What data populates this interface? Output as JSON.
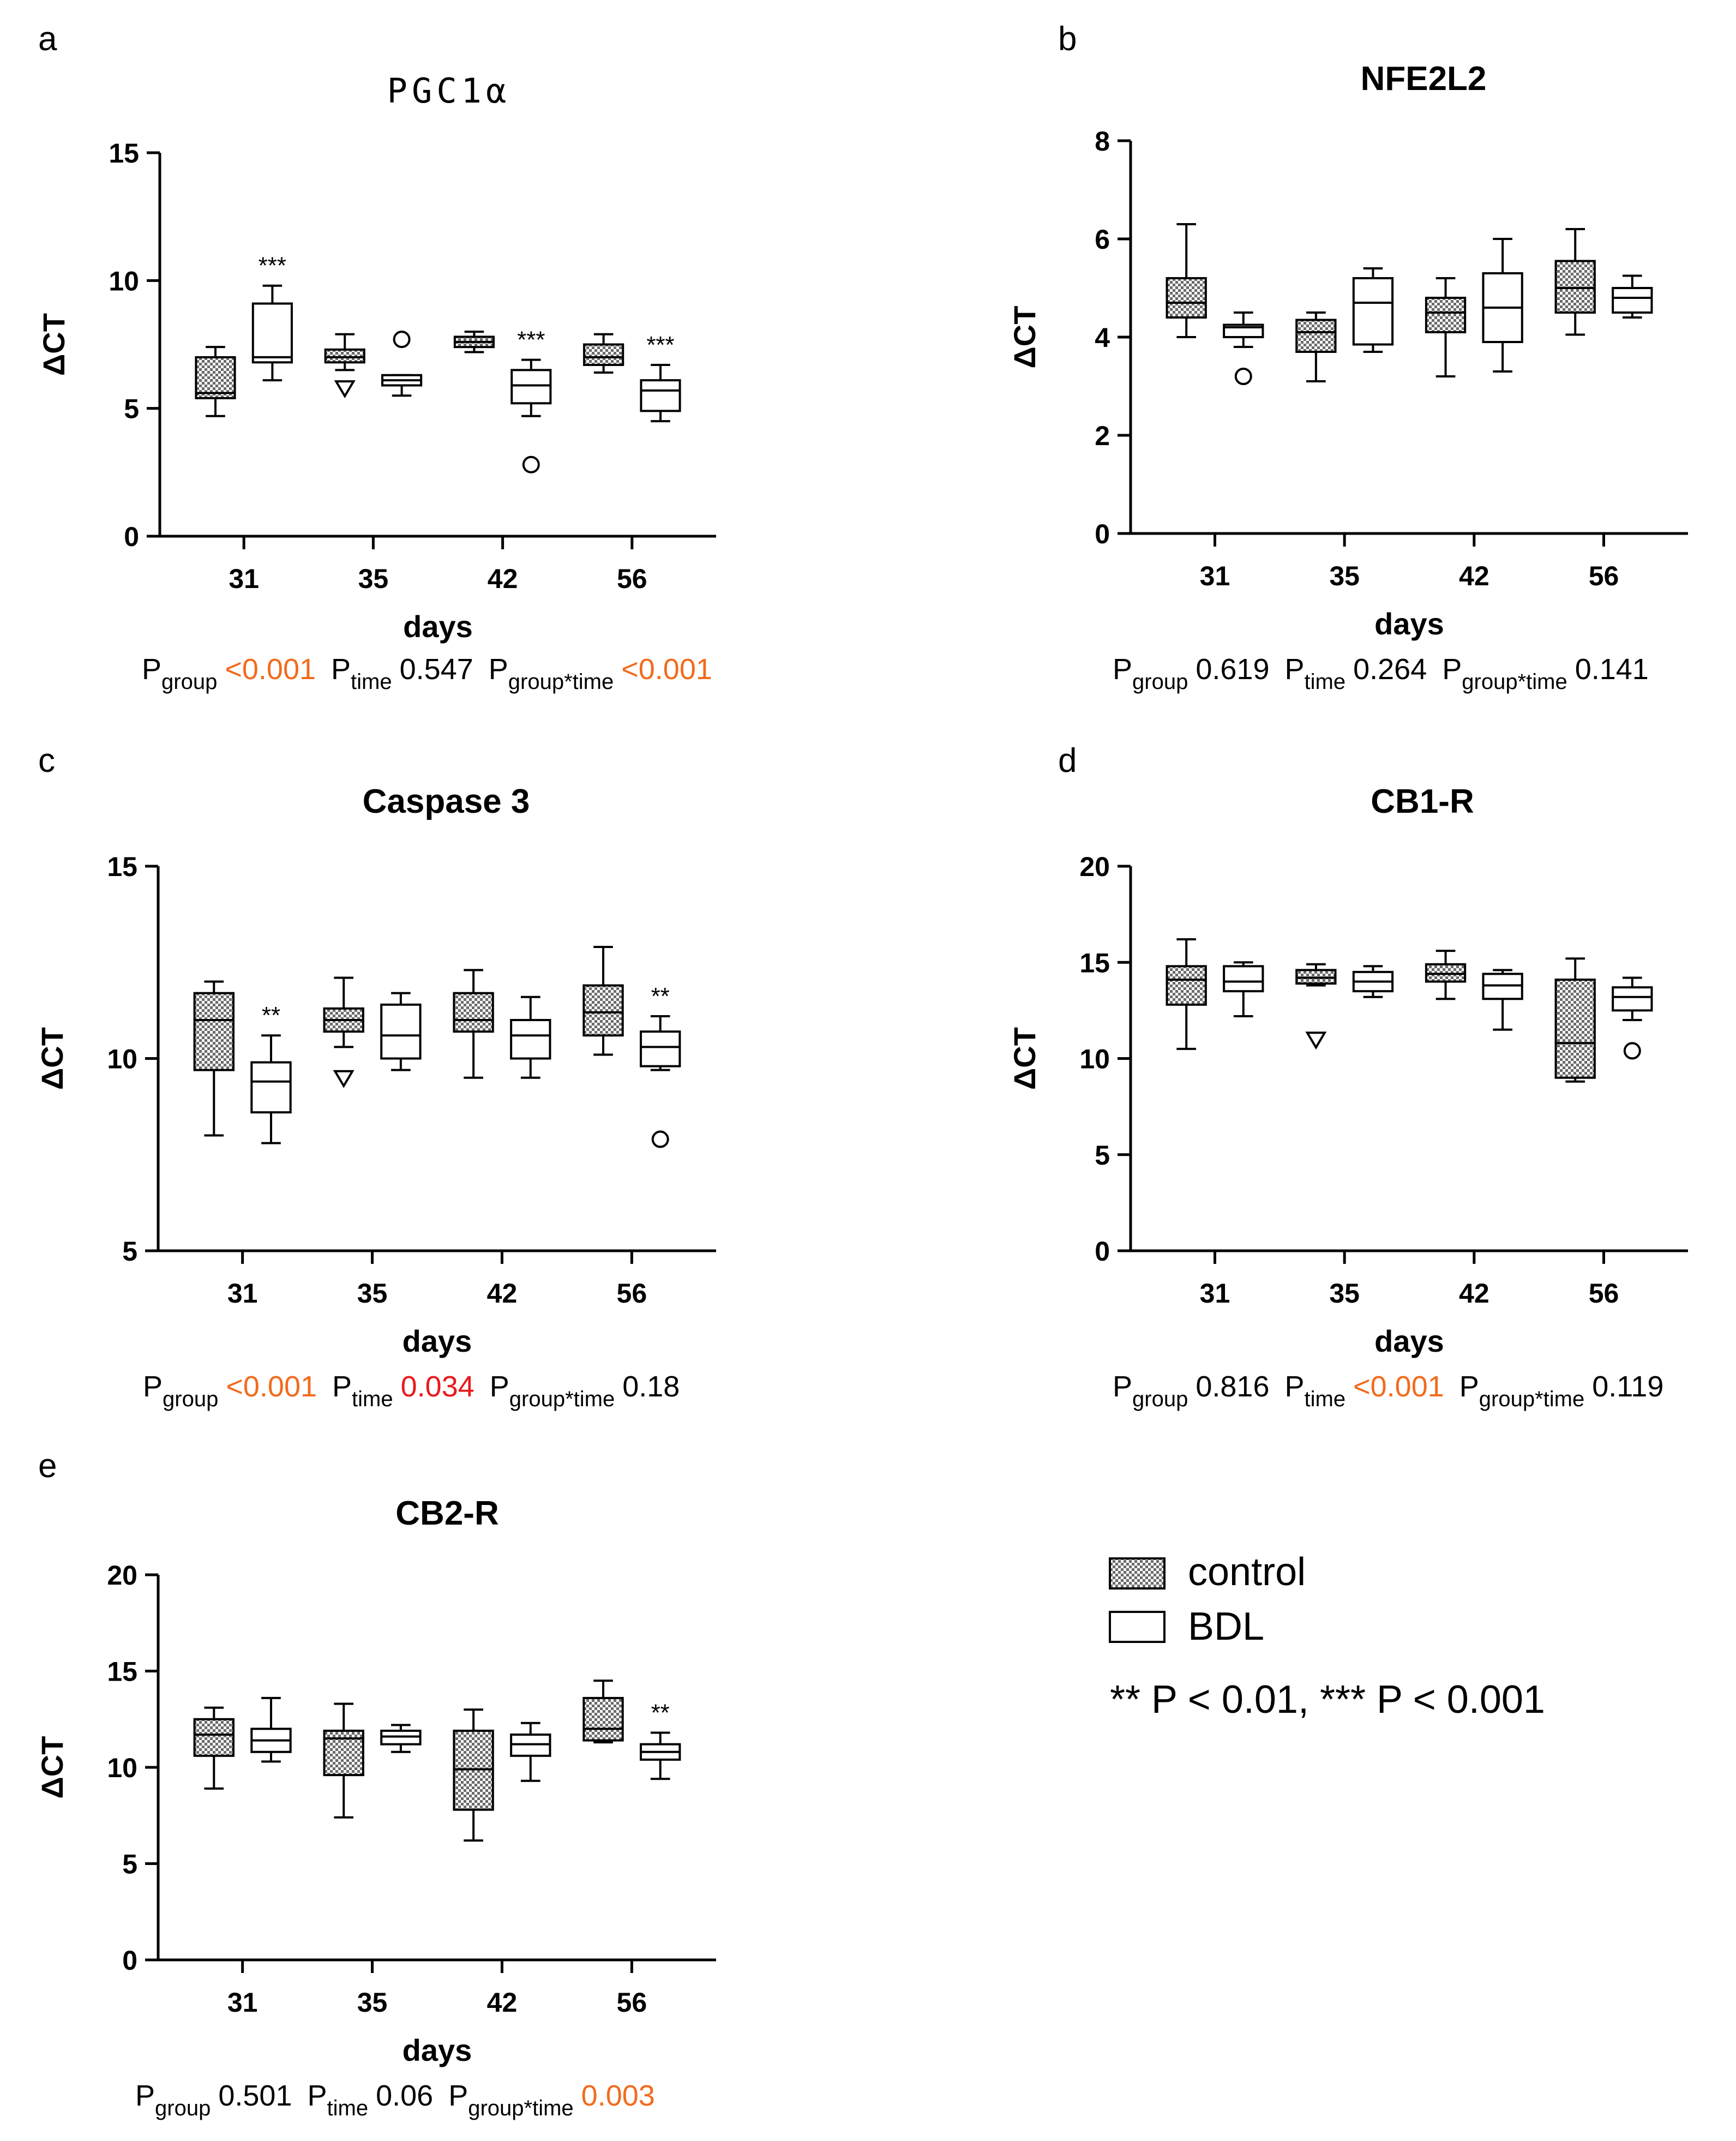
{
  "colors": {
    "control_fill": "#9a9a9a",
    "orange": "#f26b1d",
    "red": "#e8191b"
  },
  "legend": {
    "control": "control",
    "bdl": "BDL",
    "significance": "** P < 0.01, *** P < 0.001"
  },
  "chart_data": [
    {
      "panel": "a",
      "title": "PGC1α",
      "type": "box",
      "ylabel": "ΔCT",
      "xlabel": "days",
      "ylim": [
        0,
        15
      ],
      "yticks": [
        0,
        5,
        10,
        15
      ],
      "categories": [
        "31",
        "35",
        "42",
        "56"
      ],
      "series": [
        {
          "name": "control",
          "boxes": [
            {
              "min": 4.7,
              "q1": 5.4,
              "median": 5.6,
              "q3": 7.0,
              "max": 7.4
            },
            {
              "min": 6.5,
              "q1": 6.8,
              "median": 7.0,
              "q3": 7.3,
              "max": 7.9,
              "outliers": [
                {
                  "value": 5.8,
                  "marker": "triangle"
                }
              ]
            },
            {
              "min": 7.2,
              "q1": 7.4,
              "median": 7.6,
              "q3": 7.8,
              "max": 8.0
            },
            {
              "min": 6.4,
              "q1": 6.7,
              "median": 7.0,
              "q3": 7.5,
              "max": 7.9
            }
          ]
        },
        {
          "name": "BDL",
          "boxes": [
            {
              "min": 6.1,
              "q1": 6.8,
              "median": 7.0,
              "q3": 9.1,
              "max": 9.8,
              "annotation": "***"
            },
            {
              "min": 5.5,
              "q1": 5.9,
              "median": 6.1,
              "q3": 6.3,
              "max": 6.3,
              "outliers": [
                {
                  "value": 7.7,
                  "marker": "circle"
                }
              ]
            },
            {
              "min": 4.7,
              "q1": 5.2,
              "median": 5.9,
              "q3": 6.5,
              "max": 6.9,
              "annotation": "***",
              "outliers": [
                {
                  "value": 2.8,
                  "marker": "circle"
                }
              ]
            },
            {
              "min": 4.5,
              "q1": 4.9,
              "median": 5.7,
              "q3": 6.1,
              "max": 6.7,
              "annotation": "***"
            }
          ]
        }
      ],
      "stats": [
        {
          "label": "P",
          "sub": "group",
          "value": "<0.001",
          "color": "orange"
        },
        {
          "label": "P",
          "sub": "time",
          "value": "0.547",
          "color": "black"
        },
        {
          "label": "P",
          "sub": "group*time",
          "value": "<0.001",
          "color": "orange"
        }
      ]
    },
    {
      "panel": "b",
      "title": "NFE2L2",
      "type": "box",
      "ylabel": "ΔCT",
      "xlabel": "days",
      "ylim": [
        0,
        8
      ],
      "yticks": [
        0,
        2,
        4,
        6,
        8
      ],
      "categories": [
        "31",
        "35",
        "42",
        "56"
      ],
      "series": [
        {
          "name": "control",
          "boxes": [
            {
              "min": 4.0,
              "q1": 4.4,
              "median": 4.7,
              "q3": 5.2,
              "max": 6.3
            },
            {
              "min": 3.1,
              "q1": 3.7,
              "median": 4.1,
              "q3": 4.35,
              "max": 4.5
            },
            {
              "min": 3.2,
              "q1": 4.1,
              "median": 4.5,
              "q3": 4.8,
              "max": 5.2
            },
            {
              "min": 4.05,
              "q1": 4.5,
              "median": 5.0,
              "q3": 5.55,
              "max": 6.2
            }
          ]
        },
        {
          "name": "BDL",
          "boxes": [
            {
              "min": 3.8,
              "q1": 4.0,
              "median": 4.2,
              "q3": 4.25,
              "max": 4.5,
              "outliers": [
                {
                  "value": 3.2,
                  "marker": "circle"
                }
              ]
            },
            {
              "min": 3.7,
              "q1": 3.85,
              "median": 4.7,
              "q3": 5.2,
              "max": 5.4
            },
            {
              "min": 3.3,
              "q1": 3.9,
              "median": 4.6,
              "q3": 5.3,
              "max": 6.0
            },
            {
              "min": 4.4,
              "q1": 4.5,
              "median": 4.8,
              "q3": 5.0,
              "max": 5.25
            }
          ]
        }
      ],
      "stats": [
        {
          "label": "P",
          "sub": "group",
          "value": "0.619",
          "color": "black"
        },
        {
          "label": "P",
          "sub": "time",
          "value": "0.264",
          "color": "black"
        },
        {
          "label": "P",
          "sub": "group*time",
          "value": "0.141",
          "color": "black"
        }
      ]
    },
    {
      "panel": "c",
      "title": "Caspase 3",
      "type": "box",
      "ylabel": "ΔCT",
      "xlabel": "days",
      "ylim": [
        5,
        15
      ],
      "yticks": [
        5,
        10,
        15
      ],
      "categories": [
        "31",
        "35",
        "42",
        "56"
      ],
      "series": [
        {
          "name": "control",
          "boxes": [
            {
              "min": 8.0,
              "q1": 9.7,
              "median": 11.0,
              "q3": 11.7,
              "max": 12.0
            },
            {
              "min": 10.3,
              "q1": 10.7,
              "median": 11.0,
              "q3": 11.3,
              "max": 12.1,
              "outliers": [
                {
                  "value": 9.5,
                  "marker": "triangle"
                }
              ]
            },
            {
              "min": 9.5,
              "q1": 10.7,
              "median": 11.0,
              "q3": 11.7,
              "max": 12.3
            },
            {
              "min": 10.1,
              "q1": 10.6,
              "median": 11.2,
              "q3": 11.9,
              "max": 12.9
            }
          ]
        },
        {
          "name": "BDL",
          "boxes": [
            {
              "min": 7.8,
              "q1": 8.6,
              "median": 9.4,
              "q3": 9.9,
              "max": 10.6,
              "annotation": "**"
            },
            {
              "min": 9.7,
              "q1": 10.0,
              "median": 10.6,
              "q3": 11.4,
              "max": 11.7
            },
            {
              "min": 9.5,
              "q1": 10.0,
              "median": 10.6,
              "q3": 11.0,
              "max": 11.6
            },
            {
              "min": 9.7,
              "q1": 9.8,
              "median": 10.3,
              "q3": 10.7,
              "max": 11.1,
              "annotation": "**",
              "outliers": [
                {
                  "value": 7.9,
                  "marker": "circle"
                }
              ]
            }
          ]
        }
      ],
      "stats": [
        {
          "label": "P",
          "sub": "group",
          "value": "<0.001",
          "color": "orange"
        },
        {
          "label": "P",
          "sub": "time",
          "value": "0.034",
          "color": "red"
        },
        {
          "label": "P",
          "sub": "group*time",
          "value": "0.18",
          "color": "black"
        }
      ]
    },
    {
      "panel": "d",
      "title": "CB1-R",
      "type": "box",
      "ylabel": "ΔCT",
      "xlabel": "days",
      "ylim": [
        0,
        20
      ],
      "yticks": [
        0,
        5,
        10,
        15,
        20
      ],
      "categories": [
        "31",
        "35",
        "42",
        "56"
      ],
      "series": [
        {
          "name": "control",
          "boxes": [
            {
              "min": 10.5,
              "q1": 12.8,
              "median": 14.1,
              "q3": 14.8,
              "max": 16.2
            },
            {
              "min": 13.8,
              "q1": 13.9,
              "median": 14.2,
              "q3": 14.6,
              "max": 14.9,
              "outliers": [
                {
                  "value": 11.0,
                  "marker": "triangle"
                }
              ]
            },
            {
              "min": 13.1,
              "q1": 14.0,
              "median": 14.4,
              "q3": 14.9,
              "max": 15.6
            },
            {
              "min": 8.8,
              "q1": 9.0,
              "median": 10.8,
              "q3": 14.1,
              "max": 15.2
            }
          ]
        },
        {
          "name": "BDL",
          "boxes": [
            {
              "min": 12.2,
              "q1": 13.5,
              "median": 14.0,
              "q3": 14.8,
              "max": 15.0
            },
            {
              "min": 13.2,
              "q1": 13.5,
              "median": 14.0,
              "q3": 14.5,
              "max": 14.8
            },
            {
              "min": 11.5,
              "q1": 13.1,
              "median": 13.8,
              "q3": 14.4,
              "max": 14.6
            },
            {
              "min": 12.0,
              "q1": 12.5,
              "median": 13.2,
              "q3": 13.7,
              "max": 14.2,
              "outliers": [
                {
                  "value": 10.4,
                  "marker": "circle"
                }
              ]
            }
          ]
        }
      ],
      "stats": [
        {
          "label": "P",
          "sub": "group",
          "value": "0.816",
          "color": "black"
        },
        {
          "label": "P",
          "sub": "time",
          "value": "<0.001",
          "color": "orange"
        },
        {
          "label": "P",
          "sub": "group*time",
          "value": "0.119",
          "color": "black"
        }
      ]
    },
    {
      "panel": "e",
      "title": "CB2-R",
      "type": "box",
      "ylabel": "ΔCT",
      "xlabel": "days",
      "ylim": [
        0,
        20
      ],
      "yticks": [
        0,
        5,
        10,
        15,
        20
      ],
      "categories": [
        "31",
        "35",
        "42",
        "56"
      ],
      "series": [
        {
          "name": "control",
          "boxes": [
            {
              "min": 8.9,
              "q1": 10.6,
              "median": 11.7,
              "q3": 12.5,
              "max": 13.1
            },
            {
              "min": 7.4,
              "q1": 9.6,
              "median": 11.5,
              "q3": 11.9,
              "max": 13.3
            },
            {
              "min": 6.2,
              "q1": 7.8,
              "median": 9.9,
              "q3": 11.9,
              "max": 13.0
            },
            {
              "min": 11.3,
              "q1": 11.4,
              "median": 12.0,
              "q3": 13.6,
              "max": 14.5
            }
          ]
        },
        {
          "name": "BDL",
          "boxes": [
            {
              "min": 10.3,
              "q1": 10.8,
              "median": 11.4,
              "q3": 12.0,
              "max": 13.6
            },
            {
              "min": 10.8,
              "q1": 11.2,
              "median": 11.6,
              "q3": 11.9,
              "max": 12.2
            },
            {
              "min": 9.3,
              "q1": 10.6,
              "median": 11.2,
              "q3": 11.7,
              "max": 12.3
            },
            {
              "min": 9.4,
              "q1": 10.4,
              "median": 10.8,
              "q3": 11.2,
              "max": 11.8,
              "annotation": "**"
            }
          ]
        }
      ],
      "stats": [
        {
          "label": "P",
          "sub": "group",
          "value": "0.501",
          "color": "black"
        },
        {
          "label": "P",
          "sub": "time",
          "value": "0.06",
          "color": "black"
        },
        {
          "label": "P",
          "sub": "group*time",
          "value": "0.003",
          "color": "orange"
        }
      ]
    }
  ]
}
